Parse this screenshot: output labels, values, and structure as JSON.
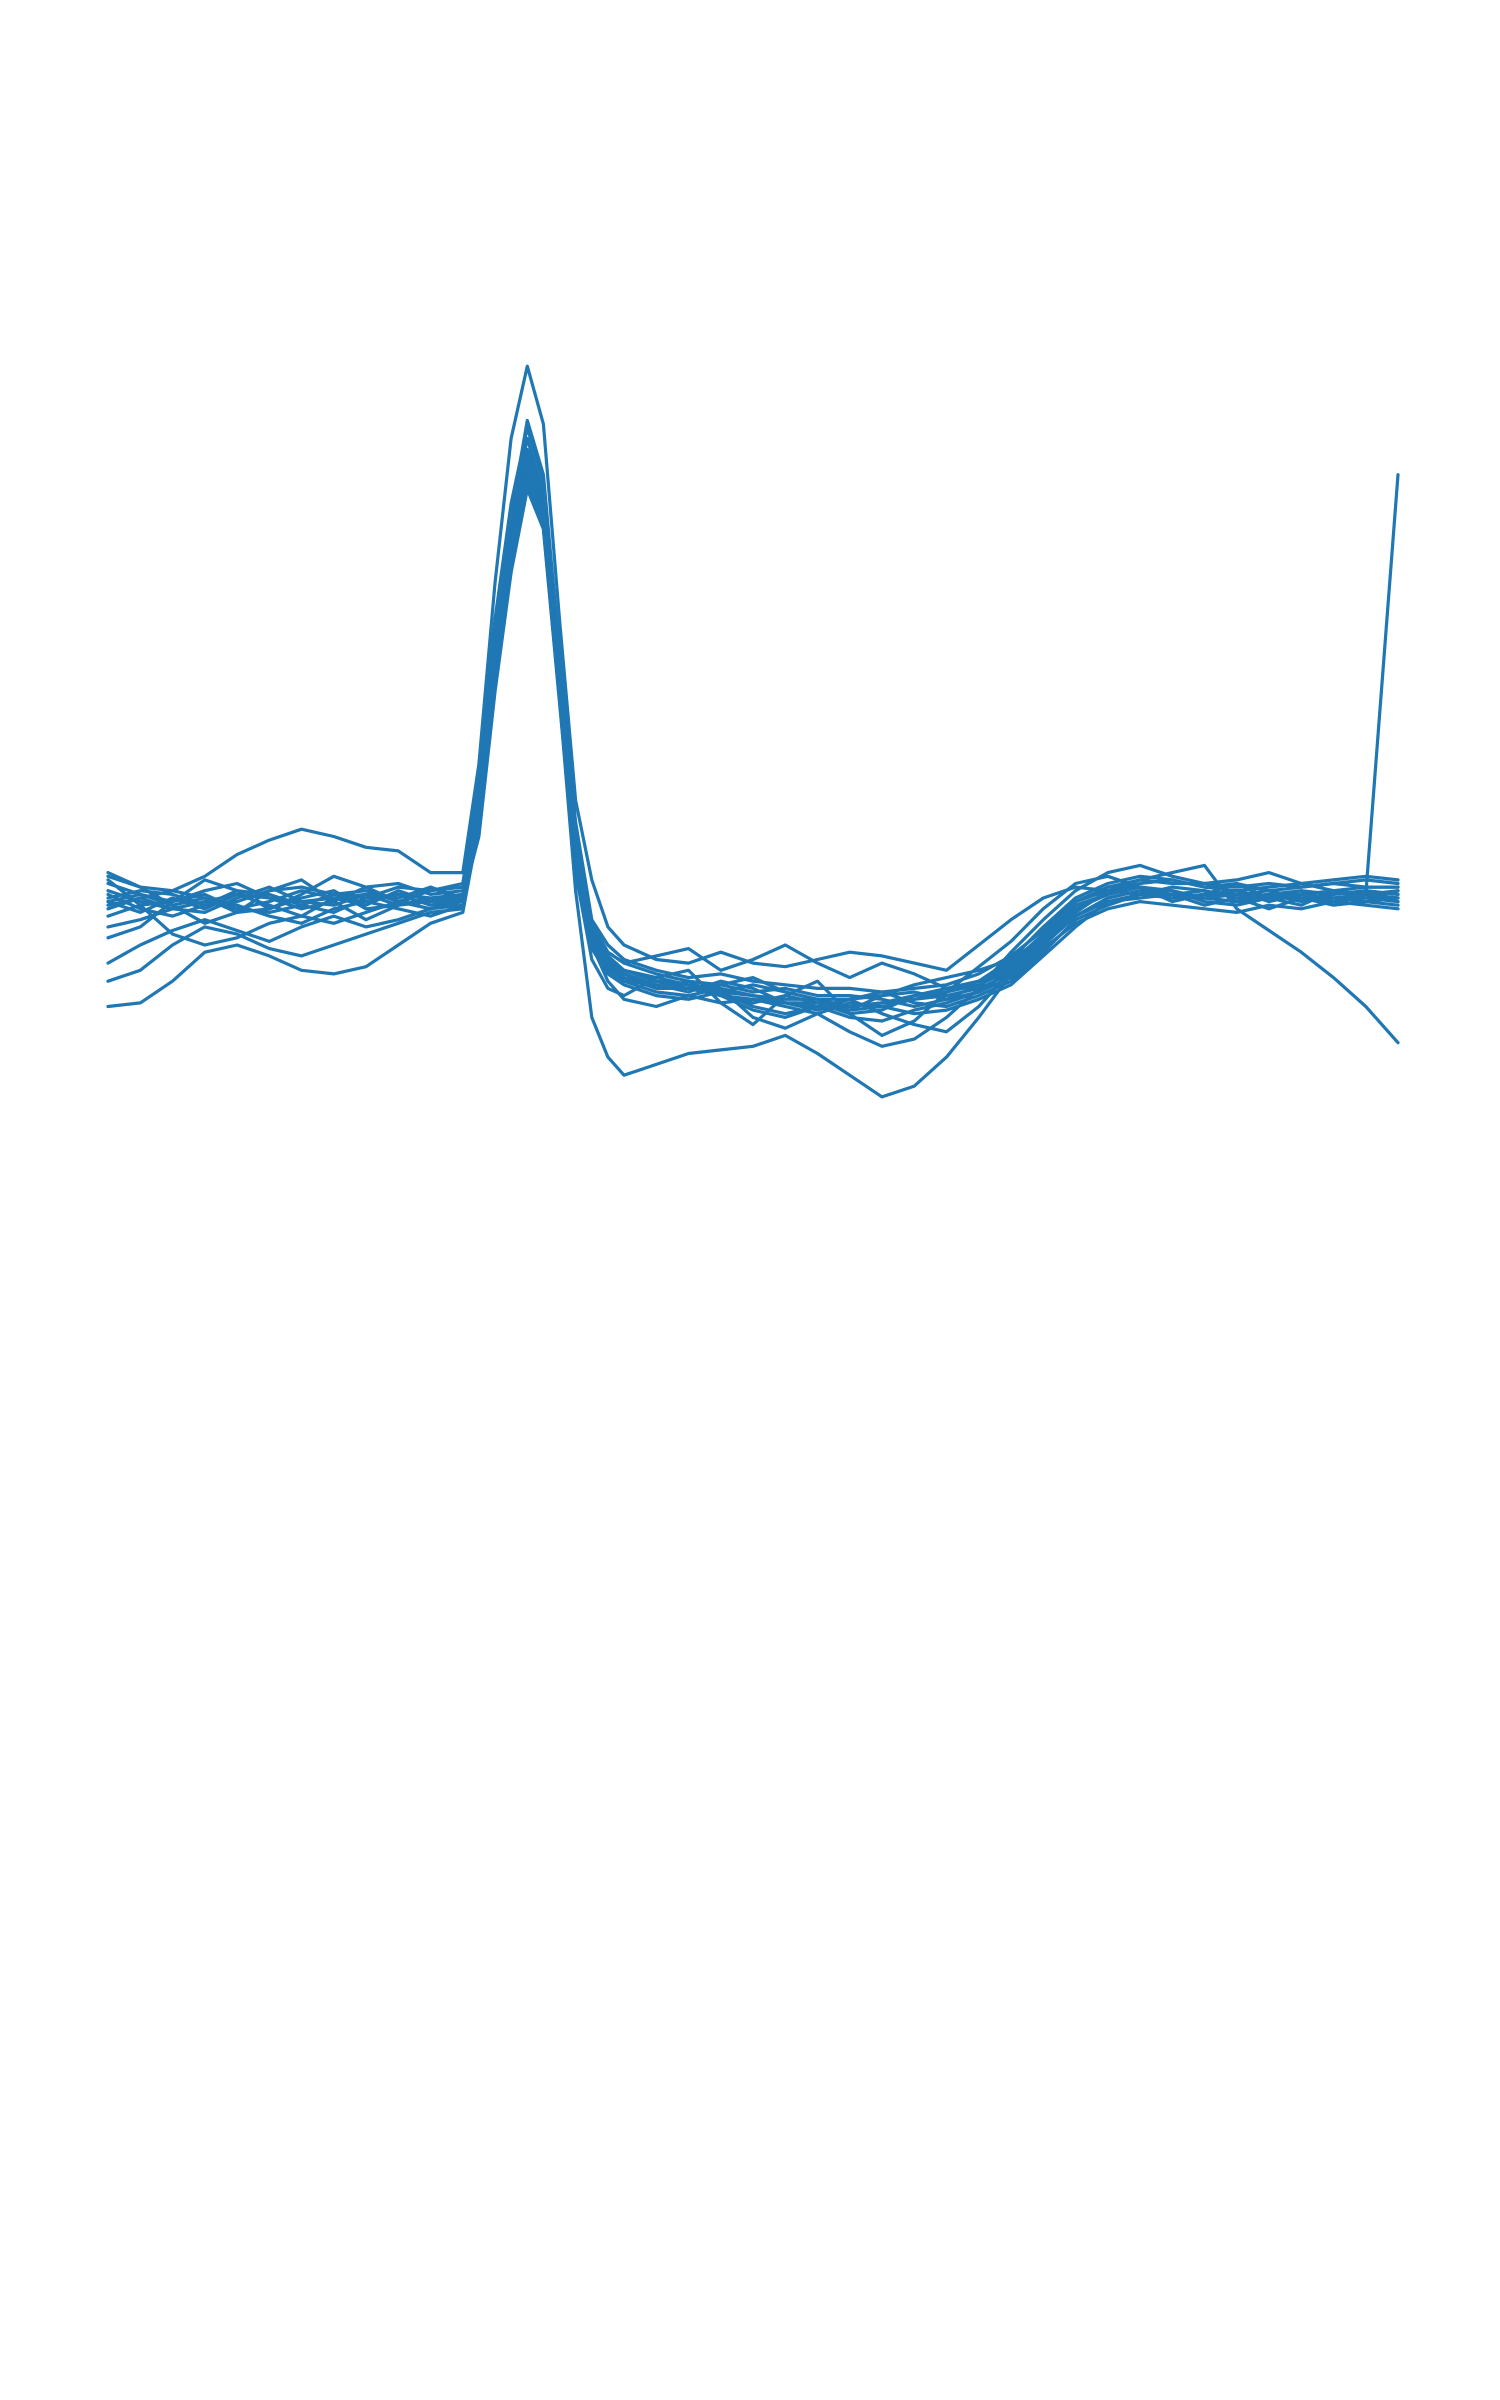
{
  "chart_data": {
    "type": "line",
    "title": "",
    "xlabel": "",
    "ylabel": "",
    "axes_visible": false,
    "grid": false,
    "legend": "none",
    "color": "#1f77b4",
    "xlim": [
      0,
      80
    ],
    "ylim": [
      -1.8,
      1.6
    ],
    "x": [
      0,
      2,
      4,
      6,
      8,
      10,
      12,
      14,
      16,
      18,
      20,
      22,
      23,
      24,
      25,
      26,
      27,
      28,
      29,
      30,
      31,
      32,
      34,
      36,
      38,
      40,
      42,
      44,
      46,
      48,
      50,
      52,
      54,
      56,
      58,
      60,
      62,
      64,
      66,
      68,
      70,
      72,
      74,
      76,
      78,
      80
    ],
    "series": [
      {
        "values": [
          0.02,
          -0.01,
          0.03,
          0.0,
          0.04,
          0.01,
          -0.02,
          0.03,
          0.01,
          0.05,
          0.02,
          0.04,
          0.3,
          0.72,
          1.03,
          1.27,
          1.14,
          0.66,
          0.2,
          -0.06,
          -0.14,
          -0.17,
          -0.2,
          -0.21,
          -0.22,
          -0.24,
          -0.25,
          -0.25,
          -0.27,
          -0.26,
          -0.25,
          -0.24,
          -0.22,
          -0.18,
          -0.1,
          -0.02,
          0.03,
          0.05,
          0.04,
          0.03,
          0.05,
          0.02,
          0.04,
          0.03,
          0.04,
          0.03
        ]
      },
      {
        "values": [
          0.05,
          0.02,
          0.0,
          -0.01,
          0.03,
          0.06,
          0.02,
          0.01,
          0.04,
          0.03,
          0.06,
          0.02,
          0.25,
          0.65,
          0.98,
          1.2,
          1.08,
          0.6,
          0.15,
          -0.09,
          -0.16,
          -0.18,
          -0.21,
          -0.23,
          -0.2,
          -0.22,
          -0.26,
          -0.28,
          -0.25,
          -0.23,
          -0.26,
          -0.27,
          -0.24,
          -0.2,
          -0.12,
          -0.03,
          0.01,
          0.04,
          0.06,
          0.05,
          0.03,
          0.04,
          0.02,
          0.05,
          0.03,
          0.05
        ]
      },
      {
        "values": [
          -0.02,
          0.01,
          0.02,
          0.04,
          0.0,
          -0.01,
          0.01,
          0.04,
          0.05,
          0.02,
          0.0,
          0.03,
          0.28,
          0.7,
          1.0,
          1.22,
          1.1,
          0.62,
          0.18,
          -0.07,
          -0.15,
          -0.19,
          -0.22,
          -0.22,
          -0.24,
          -0.26,
          -0.24,
          -0.26,
          -0.29,
          -0.28,
          -0.24,
          -0.22,
          -0.2,
          -0.15,
          -0.07,
          0.0,
          0.04,
          0.06,
          0.05,
          0.02,
          0.01,
          0.03,
          0.05,
          0.02,
          0.04,
          0.02
        ]
      },
      {
        "values": [
          0.07,
          0.04,
          0.02,
          0.05,
          0.07,
          0.03,
          0.0,
          0.02,
          0.06,
          0.07,
          0.04,
          0.05,
          0.32,
          0.74,
          1.05,
          1.25,
          1.12,
          0.64,
          0.22,
          -0.05,
          -0.12,
          -0.15,
          -0.18,
          -0.2,
          -0.21,
          -0.23,
          -0.22,
          -0.24,
          -0.24,
          -0.25,
          -0.27,
          -0.25,
          -0.21,
          -0.16,
          -0.09,
          -0.01,
          0.05,
          0.07,
          0.08,
          0.06,
          0.05,
          0.06,
          0.07,
          0.05,
          0.06,
          0.06
        ]
      },
      {
        "values": [
          -0.05,
          -0.03,
          0.0,
          0.02,
          0.01,
          -0.02,
          -0.04,
          0.0,
          0.02,
          0.0,
          -0.02,
          0.01,
          0.22,
          0.62,
          0.95,
          1.18,
          1.06,
          0.58,
          0.12,
          -0.11,
          -0.18,
          -0.21,
          -0.24,
          -0.25,
          -0.23,
          -0.27,
          -0.29,
          -0.27,
          -0.3,
          -0.31,
          -0.28,
          -0.26,
          -0.23,
          -0.19,
          -0.11,
          -0.04,
          0.0,
          0.02,
          0.01,
          0.0,
          -0.01,
          0.01,
          0.0,
          0.02,
          0.01,
          0.0
        ]
      },
      {
        "values": [
          0.03,
          0.05,
          0.04,
          0.01,
          0.02,
          0.05,
          0.06,
          0.04,
          0.03,
          0.06,
          0.05,
          0.06,
          0.34,
          0.76,
          1.08,
          1.3,
          1.15,
          0.68,
          0.24,
          -0.03,
          -0.1,
          -0.14,
          -0.17,
          -0.19,
          -0.18,
          -0.2,
          -0.21,
          -0.22,
          -0.22,
          -0.23,
          -0.22,
          -0.21,
          -0.18,
          -0.13,
          -0.06,
          0.02,
          0.06,
          0.08,
          0.07,
          0.07,
          0.06,
          0.07,
          0.06,
          0.07,
          0.08,
          0.07
        ]
      },
      {
        "values": [
          0.0,
          0.03,
          0.05,
          0.03,
          -0.01,
          0.0,
          0.03,
          0.05,
          0.0,
          0.01,
          0.03,
          0.0,
          0.27,
          0.68,
          1.01,
          1.24,
          1.11,
          0.63,
          0.17,
          -0.08,
          -0.16,
          -0.2,
          -0.23,
          -0.24,
          -0.26,
          -0.25,
          -0.27,
          -0.29,
          -0.26,
          -0.27,
          -0.29,
          -0.28,
          -0.25,
          -0.21,
          -0.13,
          -0.05,
          0.02,
          0.03,
          0.04,
          0.01,
          0.03,
          0.0,
          0.03,
          0.01,
          0.02,
          0.01
        ]
      },
      {
        "values": [
          0.04,
          0.0,
          -0.02,
          0.01,
          0.05,
          0.04,
          0.01,
          -0.01,
          0.03,
          0.04,
          0.01,
          0.03,
          0.29,
          0.71,
          1.02,
          1.26,
          1.13,
          0.65,
          0.19,
          -0.06,
          -0.13,
          -0.17,
          -0.19,
          -0.21,
          -0.23,
          -0.21,
          -0.23,
          -0.25,
          -0.28,
          -0.24,
          -0.23,
          -0.25,
          -0.23,
          -0.17,
          -0.1,
          -0.02,
          0.03,
          0.05,
          0.03,
          0.04,
          0.04,
          0.05,
          0.03,
          0.04,
          0.05,
          0.04
        ]
      },
      {
        "values": [
          -0.08,
          -0.05,
          0.02,
          0.08,
          0.05,
          0.0,
          0.04,
          0.09,
          0.06,
          0.02,
          0.05,
          0.07,
          0.36,
          0.8,
          1.12,
          1.33,
          1.18,
          0.7,
          0.21,
          -0.1,
          -0.2,
          -0.25,
          -0.27,
          -0.24,
          -0.22,
          -0.3,
          -0.33,
          -0.29,
          -0.34,
          -0.38,
          -0.36,
          -0.3,
          -0.22,
          -0.12,
          -0.03,
          0.05,
          0.1,
          0.12,
          0.09,
          0.07,
          0.08,
          0.1,
          0.07,
          0.08,
          0.09,
          0.08
        ]
      },
      {
        "values": [
          0.1,
          0.06,
          0.01,
          -0.04,
          -0.01,
          0.05,
          0.08,
          0.02,
          -0.03,
          0.01,
          0.06,
          0.03,
          0.2,
          0.6,
          0.93,
          1.16,
          1.05,
          0.57,
          0.1,
          -0.14,
          -0.22,
          -0.24,
          -0.19,
          -0.17,
          -0.26,
          -0.32,
          -0.24,
          -0.2,
          -0.29,
          -0.35,
          -0.31,
          -0.23,
          -0.16,
          -0.09,
          0.0,
          0.07,
          0.09,
          0.06,
          0.02,
          0.04,
          0.07,
          0.03,
          0.01,
          0.05,
          0.04,
          0.03
        ]
      },
      {
        "values": [
          -0.15,
          -0.1,
          -0.06,
          -0.03,
          -0.06,
          -0.09,
          -0.05,
          -0.02,
          -0.05,
          -0.03,
          0.0,
          0.02,
          0.31,
          0.75,
          1.09,
          1.35,
          1.2,
          0.71,
          0.23,
          -0.04,
          -0.12,
          -0.15,
          -0.13,
          -0.11,
          -0.17,
          -0.14,
          -0.1,
          -0.15,
          -0.19,
          -0.15,
          -0.18,
          -0.22,
          -0.2,
          -0.14,
          -0.05,
          0.03,
          0.07,
          0.09,
          0.08,
          0.06,
          0.07,
          0.05,
          0.06,
          0.07,
          0.06,
          0.06
        ]
      },
      {
        "values": [
          0.08,
          0.01,
          -0.07,
          -0.1,
          -0.08,
          -0.04,
          -0.02,
          -0.04,
          -0.01,
          0.02,
          0.0,
          0.01,
          0.24,
          0.66,
          0.99,
          1.23,
          1.09,
          0.61,
          0.16,
          -0.08,
          -0.14,
          -0.18,
          -0.22,
          -0.2,
          -0.24,
          -0.28,
          -0.3,
          -0.27,
          -0.25,
          -0.29,
          -0.32,
          -0.34,
          -0.27,
          -0.17,
          -0.08,
          0.01,
          0.04,
          0.06,
          0.05,
          0.03,
          0.02,
          0.04,
          0.03,
          0.02,
          0.03,
          0.02
        ]
      },
      {
        "values": [
          -0.2,
          -0.17,
          -0.1,
          -0.05,
          -0.07,
          -0.11,
          -0.13,
          -0.1,
          -0.07,
          -0.04,
          -0.01,
          0.0,
          0.26,
          0.69,
          1.01,
          1.21,
          1.07,
          0.59,
          0.14,
          -0.1,
          -0.17,
          -0.2,
          -0.21,
          -0.22,
          -0.21,
          -0.19,
          -0.23,
          -0.25,
          -0.25,
          -0.24,
          -0.21,
          -0.19,
          -0.17,
          -0.14,
          -0.08,
          -0.02,
          0.02,
          0.04,
          0.04,
          0.03,
          0.02,
          0.03,
          0.04,
          0.03,
          0.02,
          0.03
        ]
      },
      {
        "values": [
          -0.27,
          -0.26,
          -0.2,
          -0.12,
          -0.1,
          -0.13,
          -0.17,
          -0.18,
          -0.16,
          -0.1,
          -0.04,
          -0.01,
          0.23,
          0.64,
          0.97,
          1.19,
          1.05,
          0.58,
          0.05,
          -0.3,
          -0.41,
          -0.46,
          -0.43,
          -0.4,
          -0.39,
          -0.38,
          -0.35,
          -0.4,
          -0.46,
          -0.52,
          -0.49,
          -0.41,
          -0.3,
          -0.18,
          -0.07,
          0.02,
          0.05,
          0.06,
          0.04,
          0.05,
          0.03,
          0.04,
          0.05,
          0.04,
          0.05,
          0.04
        ]
      },
      {
        "values": [
          0.09,
          0.06,
          0.05,
          0.09,
          0.15,
          0.19,
          0.22,
          0.2,
          0.17,
          0.16,
          0.1,
          0.1,
          0.4,
          0.9,
          1.3,
          1.5,
          1.34,
          0.8,
          0.3,
          0.08,
          -0.05,
          -0.1,
          -0.14,
          -0.15,
          -0.12,
          -0.15,
          -0.16,
          -0.14,
          -0.12,
          -0.13,
          -0.15,
          -0.17,
          -0.1,
          -0.03,
          0.03,
          0.06,
          0.05,
          0.04,
          0.03,
          0.04,
          0.05,
          0.03,
          0.04,
          0.05,
          0.04,
          0.05
        ]
      },
      {
        "values": [
          0.01,
          0.03,
          0.0,
          0.02,
          0.04,
          0.03,
          0.02,
          0.03,
          0.04,
          0.01,
          0.02,
          0.03,
          0.28,
          0.69,
          1.01,
          1.23,
          1.1,
          0.63,
          0.18,
          -0.07,
          -0.14,
          -0.17,
          -0.2,
          -0.22,
          -0.24,
          -0.25,
          -0.26,
          -0.27,
          -0.28,
          -0.27,
          -0.25,
          -0.23,
          -0.2,
          -0.16,
          -0.08,
          -0.01,
          0.05,
          0.08,
          0.1,
          0.12,
          0.0,
          -0.06,
          -0.12,
          -0.19,
          -0.27,
          -0.37
        ]
      },
      {
        "values": [
          0.02,
          0.04,
          0.01,
          0.03,
          0.0,
          0.02,
          0.05,
          0.03,
          0.02,
          0.04,
          0.03,
          0.04,
          0.28,
          0.69,
          1.0,
          1.24,
          1.11,
          0.64,
          0.18,
          -0.07,
          -0.15,
          -0.18,
          -0.21,
          -0.22,
          -0.23,
          -0.24,
          -0.26,
          -0.26,
          -0.27,
          -0.26,
          -0.24,
          -0.23,
          -0.21,
          -0.17,
          -0.09,
          -0.02,
          0.03,
          0.05,
          0.04,
          0.03,
          0.04,
          0.03,
          0.04,
          0.03,
          0.04,
          1.2
        ]
      }
    ]
  }
}
